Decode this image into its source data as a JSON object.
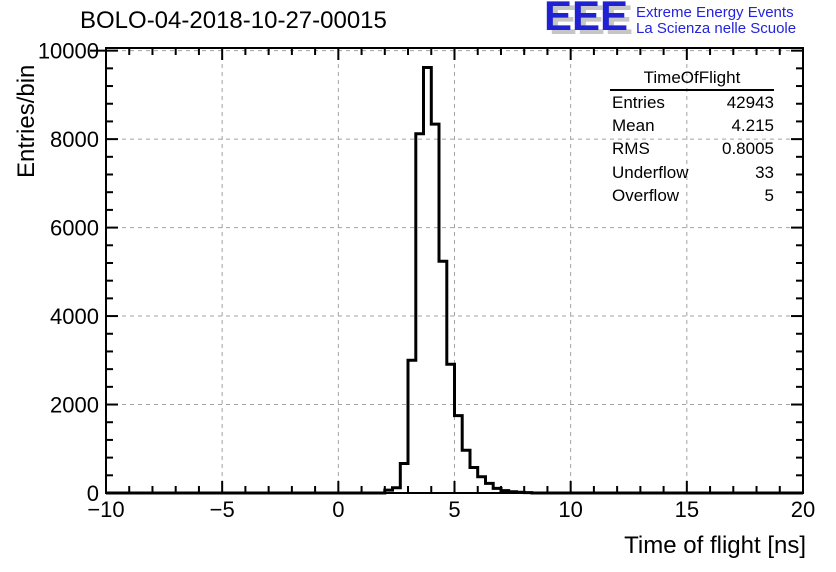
{
  "pad": {
    "title": "BOLO-04-2018-10-27-00015",
    "background": "#ffffff"
  },
  "logo": {
    "acronym": "EEE",
    "line1": "Extreme Energy Events",
    "line2": "La Scienza nelle Scuole",
    "blue": "#2121d4",
    "shadow_gray": "#c6c6c6"
  },
  "stats": {
    "title": "TimeOfFlight",
    "rows": [
      {
        "label": "Entries",
        "value": "42943"
      },
      {
        "label": "Mean",
        "value": "4.215"
      },
      {
        "label": "RMS",
        "value": "0.8005"
      },
      {
        "label": "Underflow",
        "value": "33"
      },
      {
        "label": "Overflow",
        "value": "5"
      }
    ]
  },
  "chart_data": {
    "type": "bar",
    "subtype": "step-histogram",
    "title": "BOLO-04-2018-10-27-00015",
    "xlabel": "Time of flight [ns]",
    "ylabel": "Entries/bin",
    "xlim": [
      -10,
      20
    ],
    "ylim": [
      0,
      10060
    ],
    "grid": true,
    "grid_style": "dashed",
    "grid_color": "#a2a2a2",
    "line_color": "#000000",
    "x_major_ticks": [
      -10,
      -5,
      0,
      5,
      10,
      15,
      20
    ],
    "x_major_labels": [
      "−10",
      "−5",
      "0",
      "5",
      "10",
      "15",
      "20"
    ],
    "x_minor_step": 1,
    "y_major_ticks": [
      0,
      2000,
      4000,
      6000,
      8000,
      10000
    ],
    "y_major_labels": [
      "0",
      "2000",
      "4000",
      "6000",
      "8000",
      "10000"
    ],
    "y_minor_step": 400,
    "bin_width": 0.3333,
    "bin_edges": [
      2.0,
      2.333,
      2.667,
      3.0,
      3.333,
      3.667,
      4.0,
      4.333,
      4.667,
      5.0,
      5.333,
      5.667,
      6.0,
      6.333,
      6.667,
      7.0,
      7.333,
      7.667,
      8.0,
      8.333
    ],
    "values": [
      65,
      120,
      667,
      3000,
      8120,
      9620,
      8340,
      5240,
      2910,
      1750,
      966,
      577,
      366,
      218,
      105,
      55,
      30,
      15,
      8
    ]
  }
}
